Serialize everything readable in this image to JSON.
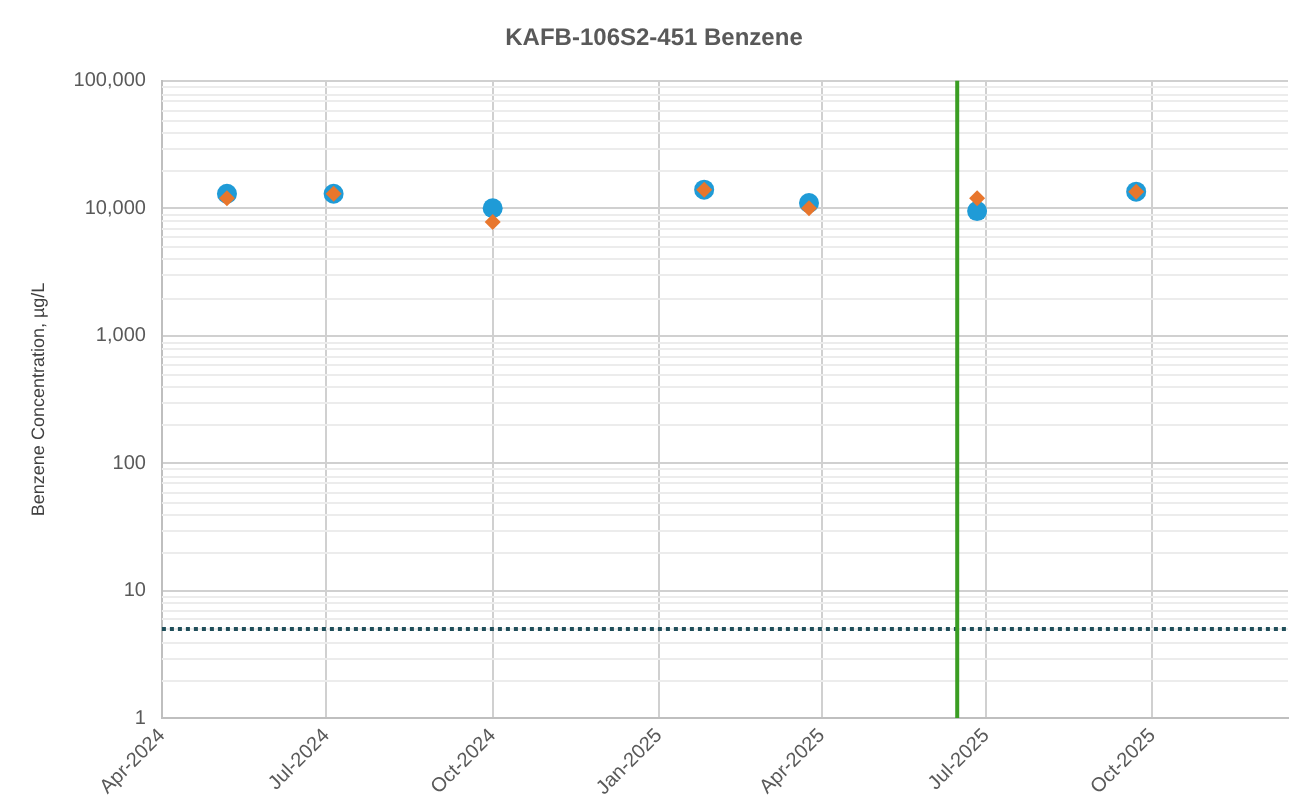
{
  "chart_data": {
    "type": "scatter",
    "title": "KAFB-106S2-451 Benzene",
    "ylabel": "Benzene Concentration, µg/L",
    "x": [
      "2024-05-07",
      "2024-07-05",
      "2024-10-01",
      "2025-01-26",
      "2025-03-25",
      "2025-06-26",
      "2025-09-22"
    ],
    "series": [
      {
        "color": "#1f9bd7",
        "marker": "circle",
        "values": [
          13000,
          13000,
          10000,
          14000,
          11000,
          9500,
          13500
        ]
      },
      {
        "color": "#e8762c",
        "marker": "diamond",
        "values": [
          12000,
          13000,
          7800,
          14000,
          10000,
          12000,
          13500
        ]
      }
    ],
    "log": "y",
    "ylim": [
      1,
      100000
    ],
    "yticks": [
      {
        "value": 1,
        "label": "1"
      },
      {
        "value": 10,
        "label": "10"
      },
      {
        "value": 100,
        "label": "100"
      },
      {
        "value": 1000,
        "label": "1,000"
      },
      {
        "value": 10000,
        "label": "10,000"
      },
      {
        "value": 100000,
        "label": "100,000"
      }
    ],
    "xlim": [
      "2024-04-01",
      "2025-12-15"
    ],
    "xticks": [
      {
        "value": "2024-04-01",
        "label": "Apr-2024"
      },
      {
        "value": "2024-07-01",
        "label": "Jul-2024"
      },
      {
        "value": "2024-10-01",
        "label": "Oct-2024"
      },
      {
        "value": "2025-01-01",
        "label": "Jan-2025"
      },
      {
        "value": "2025-04-01",
        "label": "Apr-2025"
      },
      {
        "value": "2025-07-01",
        "label": "Jul-2025"
      },
      {
        "value": "2025-10-01",
        "label": "Oct-2025"
      }
    ],
    "ref_lines": [
      {
        "axis": "y",
        "value": 5,
        "color": "#1f4e5a",
        "line_style": "dotted"
      },
      {
        "axis": "x",
        "value": "2025-06-15",
        "color": "#3a9d23",
        "line_style": "solid"
      }
    ],
    "grid": true,
    "legend": false
  }
}
